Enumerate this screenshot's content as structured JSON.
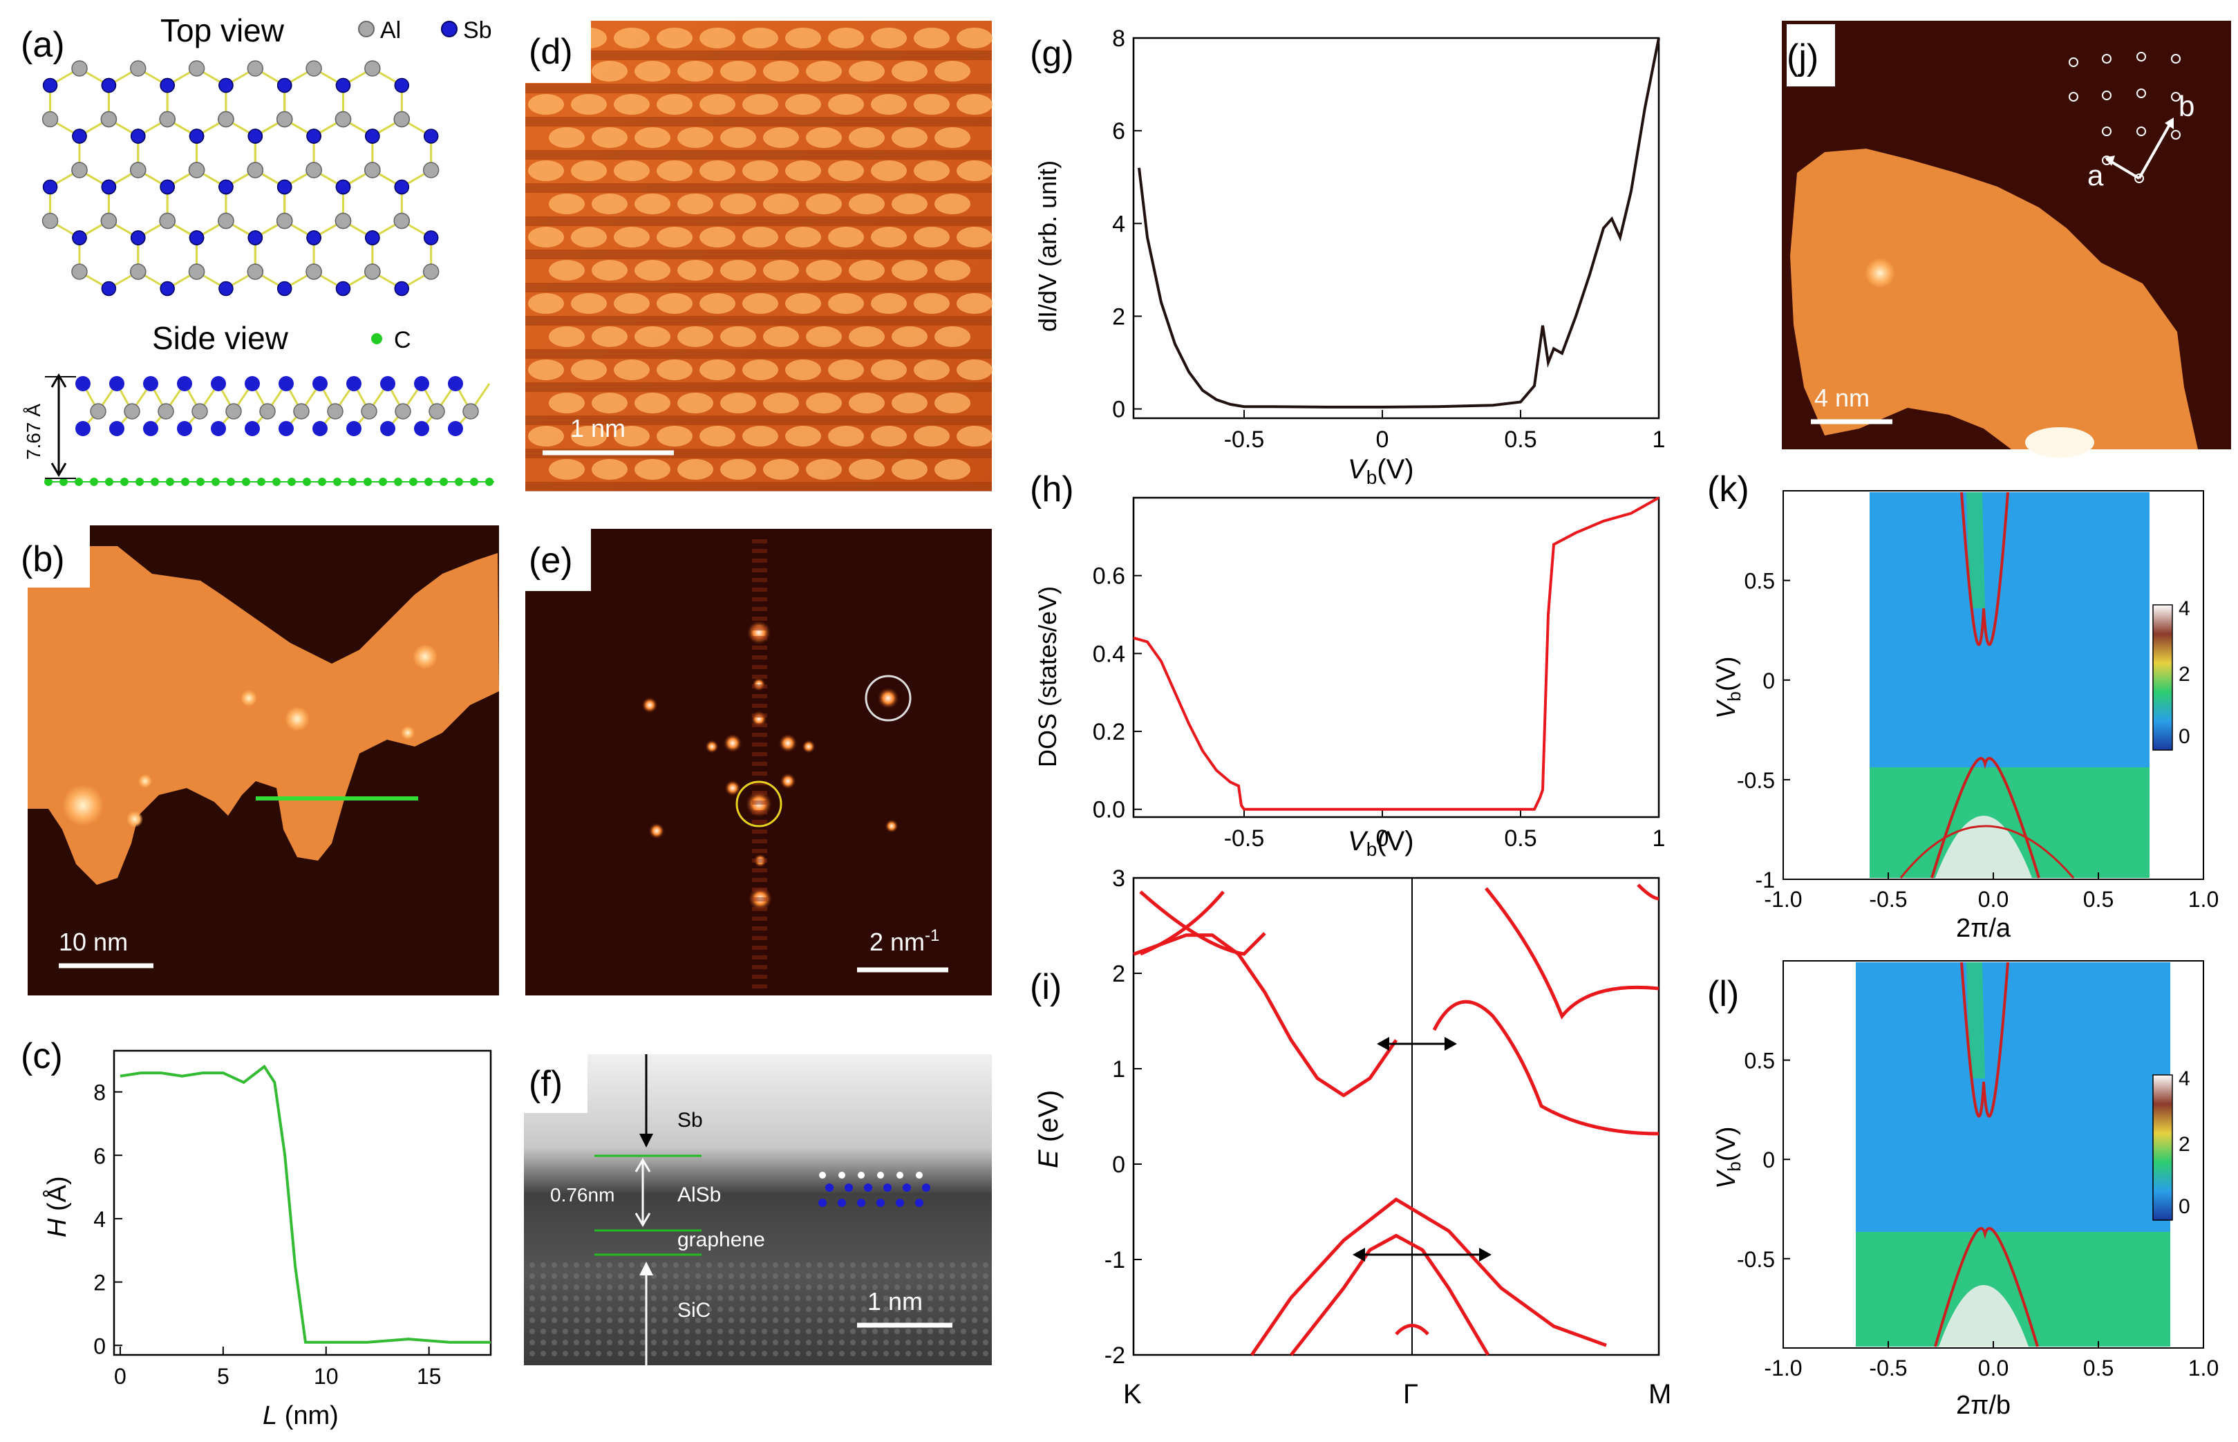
{
  "colors": {
    "al_atom": "#a8a8a8",
    "sb_atom": "#1c1cd0",
    "c_atom": "#22cc22",
    "bond": "#d8d84a",
    "stm_dark": "#2a0a02",
    "stm_mid": "#c8501a",
    "stm_bright": "#ffd79a",
    "profile": "#33bb33",
    "dos": "#e8181c",
    "band": "#e8181c",
    "map_blue": "#2aa0e8",
    "map_green": "#2ecc71"
  },
  "panel_a": {
    "label": "(a)",
    "top_view": "Top view",
    "side_view": "Side view",
    "legend_al": "Al",
    "legend_sb": "Sb",
    "legend_c": "C",
    "height": "7.67 Å"
  },
  "panel_b": {
    "label": "(b)",
    "scale": "10 nm"
  },
  "panel_c": {
    "label": "(c)",
    "xlabel_italic": "L",
    "xlabel_unit": " (nm)",
    "ylabel_italic": "H",
    "ylabel_unit": " (Å)",
    "xticks": [
      "0",
      "5",
      "10",
      "15"
    ],
    "yticks": [
      "8",
      "6",
      "4",
      "2",
      "0"
    ]
  },
  "panel_d": {
    "label": "(d)",
    "scale": "1 nm"
  },
  "panel_e": {
    "label": "(e)",
    "scale": "2 nm",
    "scale_sup": "-1"
  },
  "panel_f": {
    "label": "(f)",
    "sb": "Sb",
    "alsb": "AlSb",
    "thickness": "0.76nm",
    "graphene": "graphene",
    "sic": "SiC",
    "scale": "1 nm"
  },
  "panel_g": {
    "label": "(g)",
    "ylabel": "dI/dV (arb. unit)",
    "xlabel_main": "V",
    "xlabel_sub": "b",
    "xlabel_unit": "(V)",
    "xticks": [
      "-0.5",
      "0",
      "0.5",
      "1"
    ],
    "yticks": [
      "8",
      "6",
      "4",
      "2",
      "0"
    ]
  },
  "panel_h": {
    "label": "(h)",
    "ylabel": "DOS (states/eV)",
    "xlabel_main": "V",
    "xlabel_sub": "b",
    "xlabel_unit": "(V)",
    "xticks": [
      "-0.5",
      "0",
      "0.5",
      "1"
    ],
    "yticks": [
      "0.6",
      "0.4",
      "0.2",
      "0.0"
    ]
  },
  "panel_i": {
    "label": "(i)",
    "ylabel_italic": "E",
    "ylabel_unit": " (eV)",
    "kpoints": [
      "K",
      "Γ",
      "M"
    ],
    "yticks": [
      "3",
      "2",
      "1",
      "0",
      "-1",
      "-2"
    ]
  },
  "panel_j": {
    "label": "(j)",
    "scale": "4 nm",
    "vec_a": "a",
    "vec_b": "b"
  },
  "panel_k": {
    "label": "(k)",
    "xlabel": "2π/a",
    "ylabel_main": "V",
    "ylabel_sub": "b",
    "ylabel_unit": "(V)",
    "xticks": [
      "-1.0",
      "-0.5",
      "0.0",
      "0.5",
      "1.0"
    ],
    "yticks": [
      "0.5",
      "0",
      "-0.5",
      "-1"
    ],
    "colorbar": [
      "4",
      "2",
      "0"
    ]
  },
  "panel_l": {
    "label": "(l)",
    "xlabel": "2π/b",
    "ylabel_main": "V",
    "ylabel_sub": "b",
    "ylabel_unit": "(V)",
    "xticks": [
      "-1.0",
      "-0.5",
      "0.0",
      "0.5",
      "1.0"
    ],
    "yticks": [
      "0.5",
      "0",
      "-0.5"
    ],
    "colorbar": [
      "4",
      "2",
      "0"
    ]
  },
  "chart_data": [
    {
      "panel": "c",
      "type": "line",
      "title": "",
      "xlabel": "L (nm)",
      "ylabel": "H (Å)",
      "xlim": [
        -0.3,
        18
      ],
      "ylim": [
        -0.3,
        9.3
      ],
      "x": [
        0,
        1,
        2,
        3,
        4,
        5,
        6,
        7,
        7.5,
        8,
        8.5,
        9,
        10,
        12,
        14,
        16,
        18
      ],
      "y": [
        8.5,
        8.6,
        8.6,
        8.5,
        8.6,
        8.6,
        8.3,
        8.8,
        8.3,
        6.0,
        2.5,
        0.1,
        0.1,
        0.1,
        0.2,
        0.1,
        0.1
      ]
    },
    {
      "panel": "g",
      "type": "line",
      "title": "",
      "xlabel": "Vb(V)",
      "ylabel": "dI/dV (arb. unit)",
      "xlim": [
        -0.9,
        1.0
      ],
      "ylim": [
        -0.2,
        8
      ],
      "x": [
        -0.88,
        -0.85,
        -0.8,
        -0.75,
        -0.7,
        -0.65,
        -0.6,
        -0.55,
        -0.5,
        -0.4,
        -0.2,
        0,
        0.2,
        0.4,
        0.5,
        0.55,
        0.58,
        0.6,
        0.62,
        0.65,
        0.7,
        0.75,
        0.8,
        0.83,
        0.86,
        0.9,
        0.95,
        1.0
      ],
      "y": [
        5.2,
        3.7,
        2.3,
        1.4,
        0.8,
        0.4,
        0.2,
        0.1,
        0.05,
        0.05,
        0.04,
        0.04,
        0.05,
        0.08,
        0.15,
        0.5,
        1.8,
        1.0,
        1.3,
        1.2,
        2.0,
        2.9,
        3.9,
        4.1,
        3.7,
        4.7,
        6.5,
        8.0
      ]
    },
    {
      "panel": "h",
      "type": "line",
      "title": "",
      "xlabel": "Vb(V)",
      "ylabel": "DOS (states/eV)",
      "xlim": [
        -0.9,
        1.0
      ],
      "ylim": [
        -0.02,
        0.8
      ],
      "x": [
        -0.9,
        -0.85,
        -0.8,
        -0.75,
        -0.7,
        -0.65,
        -0.6,
        -0.55,
        -0.52,
        -0.51,
        -0.5,
        0,
        0.55,
        0.57,
        0.58,
        0.6,
        0.62,
        0.7,
        0.8,
        0.9,
        1.0
      ],
      "y": [
        0.44,
        0.43,
        0.38,
        0.3,
        0.22,
        0.15,
        0.1,
        0.07,
        0.06,
        0.01,
        0.0,
        0.0,
        0.0,
        0.03,
        0.05,
        0.5,
        0.68,
        0.71,
        0.74,
        0.76,
        0.8
      ]
    },
    {
      "panel": "i",
      "type": "line",
      "title": "",
      "xlabel": "",
      "ylabel": "E (eV)",
      "ylim": [
        -2,
        3
      ],
      "kpoints": [
        "K",
        "Γ",
        "M"
      ],
      "series": [
        {
          "name": "cb1",
          "x": [
            0,
            0.1,
            0.2,
            0.3,
            0.4,
            0.5,
            0.6,
            0.7,
            0.8,
            0.9,
            1.0
          ],
          "y": [
            2.2,
            2.3,
            2.4,
            2.4,
            2.2,
            1.8,
            1.3,
            0.9,
            0.72,
            0.9,
            1.3
          ]
        },
        {
          "name": "vb1",
          "x": [
            0.45,
            0.6,
            0.8,
            1.0,
            1.2,
            1.4,
            1.6,
            1.8
          ],
          "y": [
            -2.0,
            -1.4,
            -0.8,
            -0.37,
            -0.7,
            -1.3,
            -1.7,
            -1.9
          ]
        },
        {
          "name": "vb2",
          "x": [
            0.6,
            0.8,
            0.9,
            1.0,
            1.1,
            1.2,
            1.35
          ],
          "y": [
            -2.0,
            -1.3,
            -0.9,
            -0.75,
            -0.9,
            -1.3,
            -2.0
          ]
        }
      ]
    }
  ]
}
